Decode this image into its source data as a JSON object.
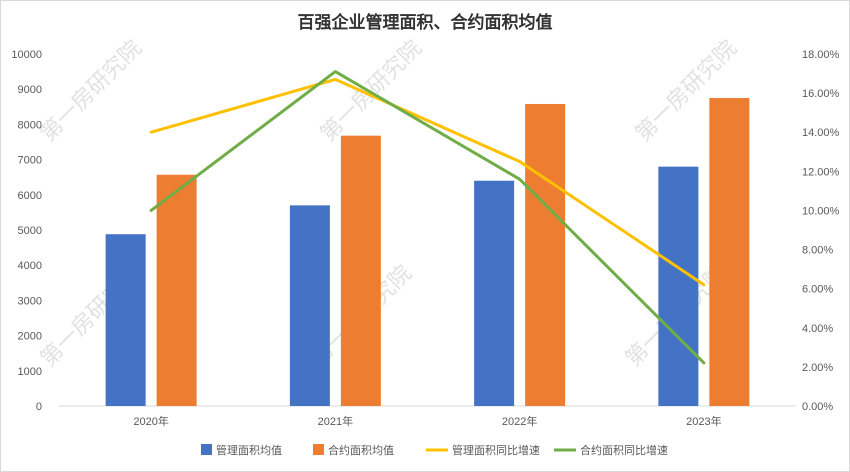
{
  "chart_data": {
    "type": "bar",
    "title": "百强企业管理面积、合约面积均值",
    "categories": [
      "2020年",
      "2021年",
      "2022年",
      "2023年"
    ],
    "series": [
      {
        "name": "管理面积均值",
        "kind": "bar",
        "axis": "left",
        "color": "#4472c4",
        "values": [
          4880,
          5700,
          6400,
          6800
        ]
      },
      {
        "name": "合约面积均值",
        "kind": "bar",
        "axis": "left",
        "color": "#ed7d31",
        "values": [
          6570,
          7680,
          8580,
          8750
        ]
      },
      {
        "name": "管理面积同比增速",
        "kind": "line",
        "axis": "right",
        "color": "#ffc000",
        "values": [
          0.14,
          0.167,
          0.125,
          0.062
        ]
      },
      {
        "name": "合约面积同比增速",
        "kind": "line",
        "axis": "right",
        "color": "#70ad47",
        "values": [
          0.1,
          0.171,
          0.116,
          0.022
        ]
      }
    ],
    "y_left": {
      "min": 0,
      "max": 10000,
      "step": 1000,
      "ticks": [
        "0",
        "1000",
        "2000",
        "3000",
        "4000",
        "5000",
        "6000",
        "7000",
        "8000",
        "9000",
        "10000"
      ]
    },
    "y_right": {
      "min": 0,
      "max": 0.18,
      "step": 0.02,
      "ticks": [
        "0.00%",
        "2.00%",
        "4.00%",
        "6.00%",
        "8.00%",
        "10.00%",
        "12.00%",
        "14.00%",
        "16.00%",
        "18.00%"
      ]
    },
    "legend_position": "bottom",
    "grid": false
  },
  "watermark": "第一房研究院"
}
